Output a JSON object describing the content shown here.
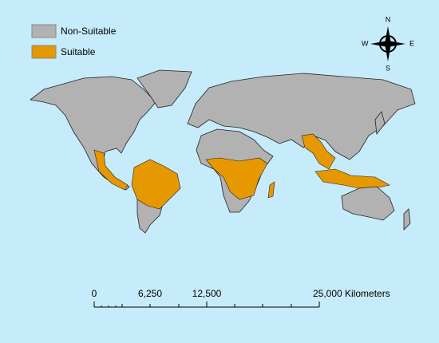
{
  "legend": {
    "items": [
      {
        "label": "Non-Suitable",
        "color": "#b2b2b2"
      },
      {
        "label": "Suitable",
        "color": "#e69800"
      }
    ]
  },
  "compass": {
    "n": "N",
    "e": "E",
    "s": "S",
    "w": "W"
  },
  "scale_bar": {
    "labels": [
      "0",
      "6,250",
      "12,500",
      "25,000 Kilometers"
    ]
  }
}
